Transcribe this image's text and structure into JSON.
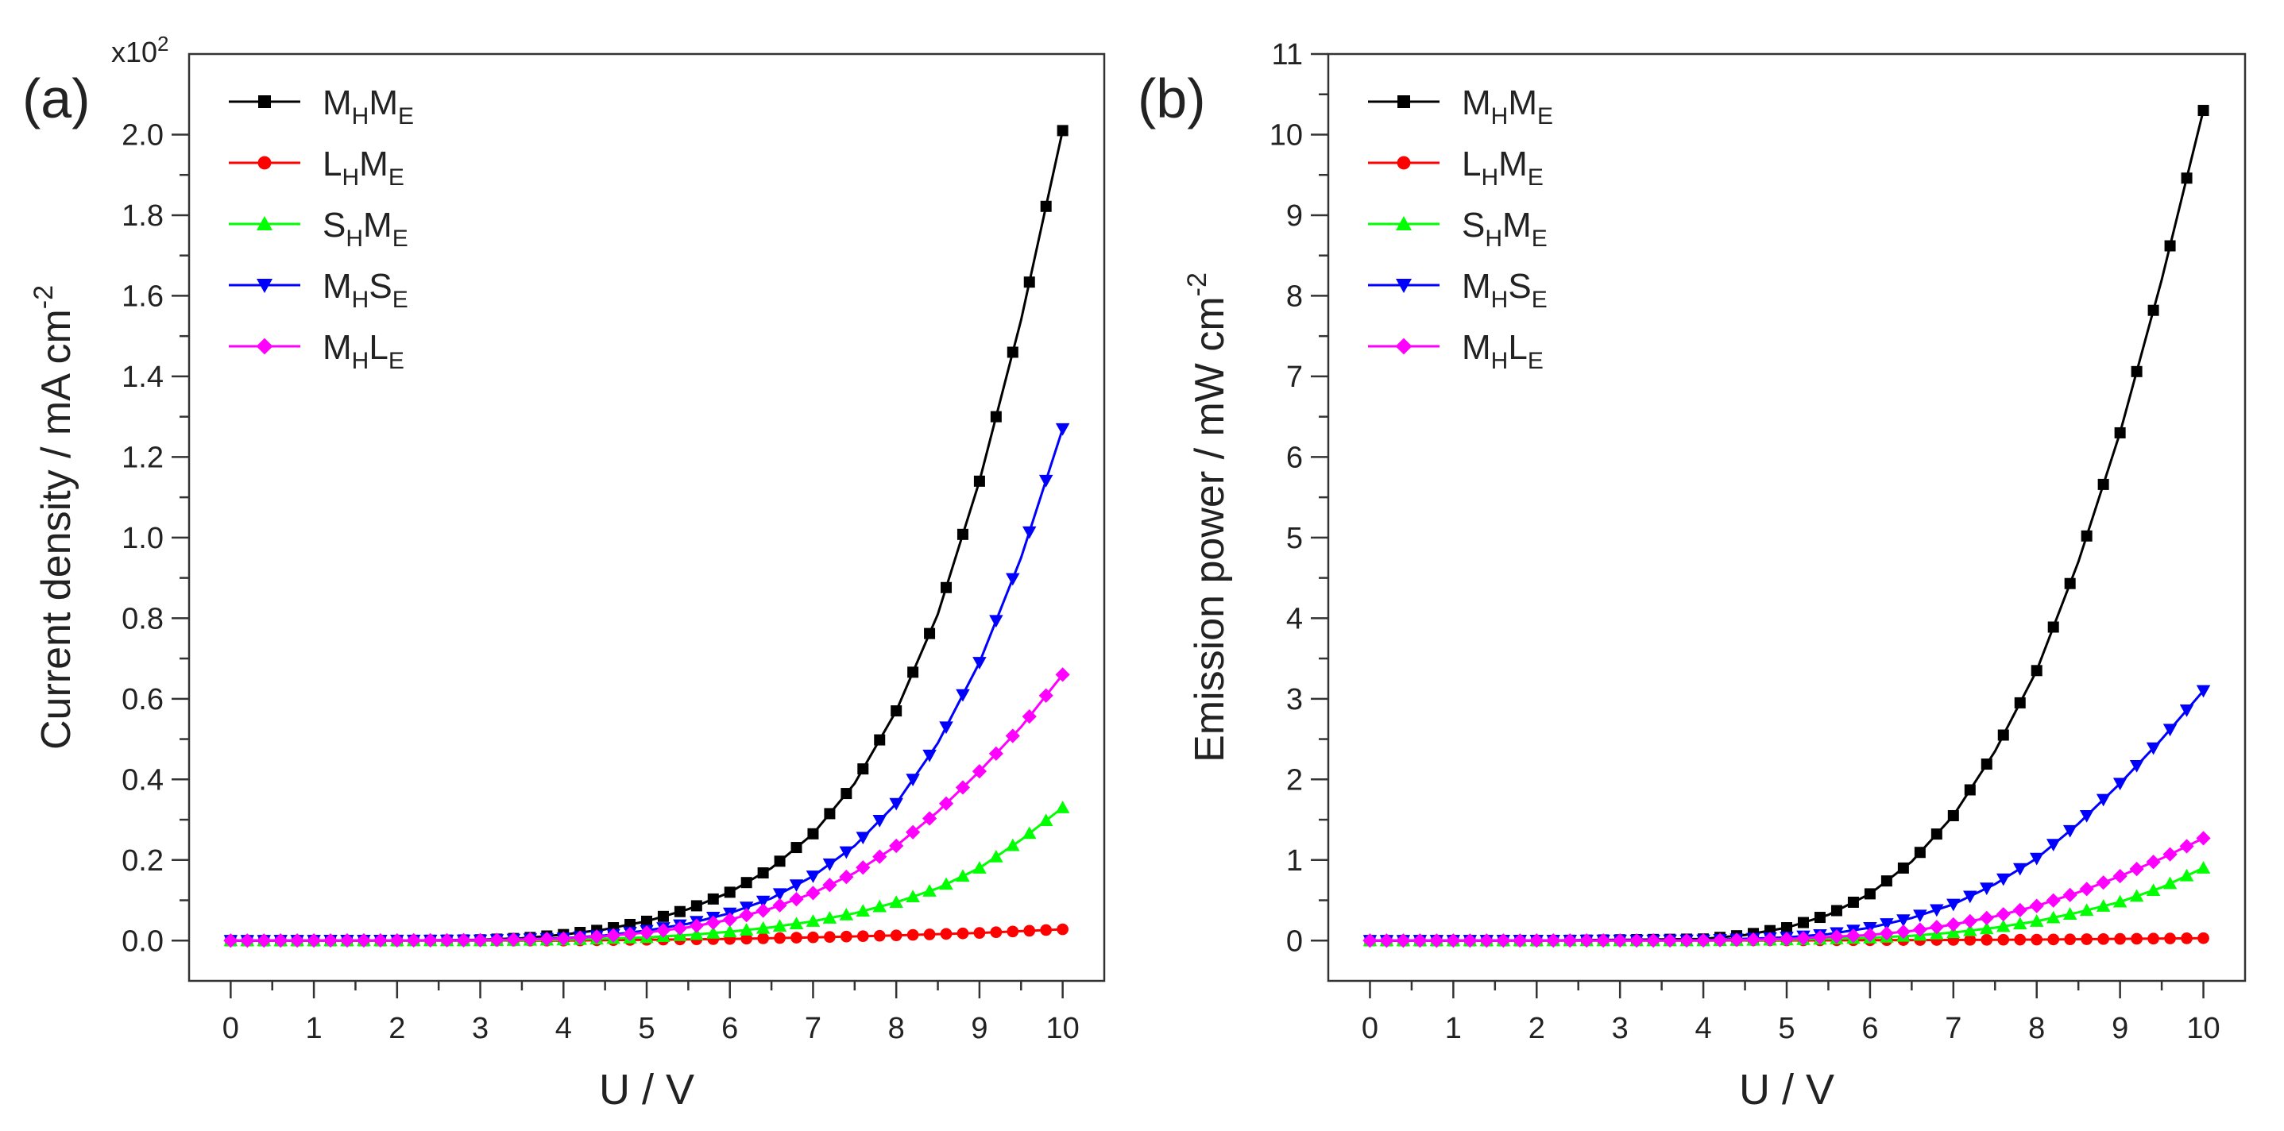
{
  "chart_data": [
    {
      "type": "line",
      "panel_label": "(a)",
      "xlabel": "U / V",
      "ylabel": "Current density / mA cm",
      "ylabel_sup": "-2",
      "multiplier_base": "x10",
      "multiplier_exp": "2",
      "xlim": [
        -0.5,
        10.5
      ],
      "ylim": [
        -0.1,
        2.2
      ],
      "xticks": [
        0,
        1,
        2,
        3,
        4,
        5,
        6,
        7,
        8,
        9,
        10
      ],
      "yticks": [
        0.0,
        0.2,
        0.4,
        0.6,
        0.8,
        1.0,
        1.2,
        1.4,
        1.6,
        1.8,
        2.0
      ],
      "ytick_labels": [
        "0.0",
        "0.2",
        "0.4",
        "0.6",
        "0.8",
        "1.0",
        "1.2",
        "1.4",
        "1.6",
        "1.8",
        "2.0"
      ],
      "legend_position": "top-left",
      "series": [
        {
          "name": "MHME",
          "label": {
            "a": "M",
            "as": "H",
            "b": "M",
            "bs": "E"
          },
          "color": "#000000",
          "marker": "square",
          "x": [
            0,
            1,
            2,
            3,
            3.5,
            4,
            4.5,
            5,
            5.5,
            6,
            6.5,
            7,
            7.5,
            8,
            8.5,
            9,
            9.5,
            10
          ],
          "y": [
            0,
            0,
            0,
            0.002,
            0.006,
            0.015,
            0.028,
            0.048,
            0.078,
            0.12,
            0.18,
            0.265,
            0.39,
            0.57,
            0.81,
            1.14,
            1.54,
            2.01
          ]
        },
        {
          "name": "LHME",
          "label": {
            "a": "L",
            "as": "H",
            "b": "M",
            "bs": "E"
          },
          "color": "#ff0000",
          "marker": "circle",
          "x": [
            0,
            2,
            4,
            5,
            6,
            7,
            8,
            9,
            10
          ],
          "y": [
            0,
            0,
            0,
            0.002,
            0.004,
            0.008,
            0.013,
            0.019,
            0.028
          ]
        },
        {
          "name": "SHME",
          "label": {
            "a": "S",
            "as": "H",
            "b": "M",
            "bs": "E"
          },
          "color": "#00ff00",
          "marker": "triangle-up",
          "x": [
            0,
            3,
            4,
            5,
            5.5,
            6,
            6.5,
            7,
            7.5,
            8,
            8.5,
            9,
            9.5,
            10
          ],
          "y": [
            0,
            0,
            0.002,
            0.008,
            0.014,
            0.022,
            0.033,
            0.048,
            0.068,
            0.095,
            0.13,
            0.18,
            0.25,
            0.33
          ]
        },
        {
          "name": "MHSE",
          "label": {
            "a": "M",
            "as": "H",
            "b": "S",
            "bs": "E"
          },
          "color": "#0000ff",
          "marker": "triangle-down",
          "x": [
            0,
            3,
            4,
            4.5,
            5,
            5.5,
            6,
            6.5,
            7,
            7.5,
            8,
            8.5,
            9,
            9.5,
            10
          ],
          "y": [
            0,
            0.001,
            0.006,
            0.013,
            0.025,
            0.042,
            0.068,
            0.105,
            0.16,
            0.235,
            0.34,
            0.49,
            0.69,
            0.95,
            1.27
          ]
        },
        {
          "name": "MHLE",
          "label": {
            "a": "M",
            "as": "H",
            "b": "L",
            "bs": "E"
          },
          "color": "#ff00ff",
          "marker": "diamond",
          "x": [
            0,
            3,
            4,
            4.5,
            5,
            5.5,
            6,
            6.5,
            7,
            7.5,
            8,
            8.5,
            9,
            9.5,
            10
          ],
          "y": [
            0,
            0.001,
            0.005,
            0.011,
            0.02,
            0.033,
            0.052,
            0.08,
            0.118,
            0.168,
            0.235,
            0.32,
            0.42,
            0.53,
            0.66
          ]
        }
      ]
    },
    {
      "type": "line",
      "panel_label": "(b)",
      "xlabel": "U / V",
      "ylabel": "Emission power / mW cm",
      "ylabel_sup": "-2",
      "xlim": [
        -0.5,
        10.5
      ],
      "ylim": [
        -0.5,
        11
      ],
      "xticks": [
        0,
        1,
        2,
        3,
        4,
        5,
        6,
        7,
        8,
        9,
        10
      ],
      "yticks": [
        0,
        1,
        2,
        3,
        4,
        5,
        6,
        7,
        8,
        9,
        10,
        11
      ],
      "ytick_labels": [
        "0",
        "1",
        "2",
        "3",
        "4",
        "5",
        "6",
        "7",
        "8",
        "9",
        "10",
        "11"
      ],
      "legend_position": "top-left",
      "series": [
        {
          "name": "MHME",
          "label": {
            "a": "M",
            "as": "H",
            "b": "M",
            "bs": "E"
          },
          "color": "#000000",
          "marker": "square",
          "x": [
            0,
            2,
            4,
            4.5,
            5,
            5.5,
            6,
            6.5,
            7,
            7.5,
            8,
            8.5,
            9,
            9.5,
            10
          ],
          "y": [
            0,
            0,
            0.02,
            0.07,
            0.16,
            0.32,
            0.58,
            0.98,
            1.55,
            2.35,
            3.35,
            4.7,
            6.3,
            8.2,
            10.3
          ]
        },
        {
          "name": "LHME",
          "label": {
            "a": "L",
            "as": "H",
            "b": "M",
            "bs": "E"
          },
          "color": "#ff0000",
          "marker": "circle",
          "x": [
            0,
            2,
            4,
            6,
            8,
            10
          ],
          "y": [
            0,
            0,
            0,
            0.005,
            0.012,
            0.03
          ]
        },
        {
          "name": "SHME",
          "label": {
            "a": "S",
            "as": "H",
            "b": "M",
            "bs": "E"
          },
          "color": "#00ff00",
          "marker": "triangle-up",
          "x": [
            0,
            4,
            5,
            6,
            6.5,
            7,
            7.5,
            8,
            8.5,
            9,
            9.5,
            10
          ],
          "y": [
            0,
            0,
            0.01,
            0.035,
            0.06,
            0.1,
            0.16,
            0.24,
            0.35,
            0.48,
            0.66,
            0.9
          ]
        },
        {
          "name": "MHSE",
          "label": {
            "a": "M",
            "as": "H",
            "b": "S",
            "bs": "E"
          },
          "color": "#0000ff",
          "marker": "triangle-down",
          "x": [
            0,
            4,
            5,
            5.5,
            6,
            6.5,
            7,
            7.5,
            8,
            8.5,
            9,
            9.5,
            10
          ],
          "y": [
            0,
            0.005,
            0.04,
            0.08,
            0.16,
            0.28,
            0.45,
            0.7,
            1.02,
            1.45,
            1.95,
            2.5,
            3.1
          ]
        },
        {
          "name": "MHLE",
          "label": {
            "a": "M",
            "as": "H",
            "b": "L",
            "bs": "E"
          },
          "color": "#ff00ff",
          "marker": "diamond",
          "x": [
            0,
            4,
            5,
            6,
            6.5,
            7,
            7.5,
            8,
            8.5,
            9,
            9.5,
            10
          ],
          "y": [
            0,
            0.002,
            0.02,
            0.07,
            0.12,
            0.2,
            0.3,
            0.43,
            0.6,
            0.8,
            1.02,
            1.27
          ]
        }
      ]
    }
  ]
}
